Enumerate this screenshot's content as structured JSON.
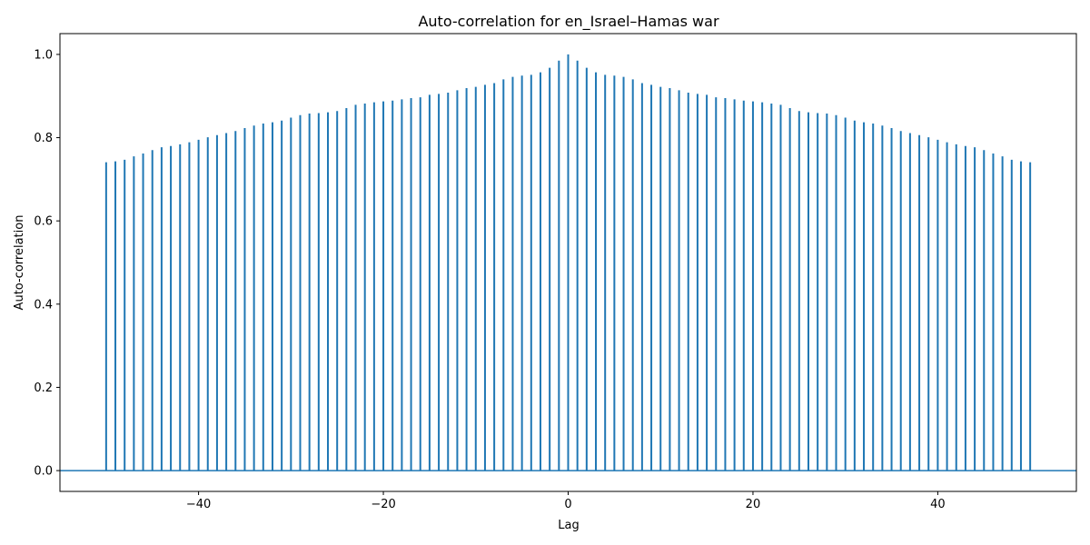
{
  "chart_data": {
    "type": "bar",
    "subtype": "stem",
    "title": "Auto-correlation for en_Israel–Hamas war",
    "xlabel": "Lag",
    "ylabel": "Auto-correlation",
    "xlim": [
      -55,
      55
    ],
    "ylim": [
      -0.05,
      1.05
    ],
    "xticks": [
      -40,
      -20,
      0,
      20,
      40
    ],
    "xtick_labels": [
      "−40",
      "−20",
      "0",
      "20",
      "40"
    ],
    "yticks": [
      0.0,
      0.2,
      0.4,
      0.6,
      0.8,
      1.0
    ],
    "ytick_labels": [
      "0.0",
      "0.2",
      "0.4",
      "0.6",
      "0.8",
      "1.0"
    ],
    "grid": false,
    "color": "#1f77b4",
    "baseline": 0.0,
    "x": [
      -50,
      -49,
      -48,
      -47,
      -46,
      -45,
      -44,
      -43,
      -42,
      -41,
      -40,
      -39,
      -38,
      -37,
      -36,
      -35,
      -34,
      -33,
      -32,
      -31,
      -30,
      -29,
      -28,
      -27,
      -26,
      -25,
      -24,
      -23,
      -22,
      -21,
      -20,
      -19,
      -18,
      -17,
      -16,
      -15,
      -14,
      -13,
      -12,
      -11,
      -10,
      -9,
      -8,
      -7,
      -6,
      -5,
      -4,
      -3,
      -2,
      -1,
      0,
      1,
      2,
      3,
      4,
      5,
      6,
      7,
      8,
      9,
      10,
      11,
      12,
      13,
      14,
      15,
      16,
      17,
      18,
      19,
      20,
      21,
      22,
      23,
      24,
      25,
      26,
      27,
      28,
      29,
      30,
      31,
      32,
      33,
      34,
      35,
      36,
      37,
      38,
      39,
      40,
      41,
      42,
      43,
      44,
      45,
      46,
      47,
      48,
      49,
      50
    ],
    "values": [
      0.741,
      0.743,
      0.747,
      0.755,
      0.762,
      0.77,
      0.777,
      0.78,
      0.784,
      0.789,
      0.795,
      0.801,
      0.806,
      0.811,
      0.816,
      0.823,
      0.829,
      0.834,
      0.837,
      0.841,
      0.848,
      0.854,
      0.858,
      0.859,
      0.861,
      0.864,
      0.871,
      0.879,
      0.882,
      0.885,
      0.887,
      0.889,
      0.892,
      0.895,
      0.897,
      0.903,
      0.905,
      0.908,
      0.914,
      0.919,
      0.922,
      0.927,
      0.931,
      0.94,
      0.946,
      0.949,
      0.951,
      0.957,
      0.968,
      0.985,
      1.0,
      0.985,
      0.968,
      0.957,
      0.951,
      0.949,
      0.946,
      0.94,
      0.931,
      0.927,
      0.922,
      0.919,
      0.914,
      0.908,
      0.905,
      0.903,
      0.897,
      0.895,
      0.892,
      0.889,
      0.887,
      0.885,
      0.882,
      0.879,
      0.871,
      0.864,
      0.861,
      0.859,
      0.858,
      0.854,
      0.848,
      0.841,
      0.837,
      0.834,
      0.829,
      0.823,
      0.816,
      0.811,
      0.806,
      0.801,
      0.795,
      0.789,
      0.784,
      0.78,
      0.777,
      0.77,
      0.762,
      0.755,
      0.747,
      0.743,
      0.741
    ]
  }
}
